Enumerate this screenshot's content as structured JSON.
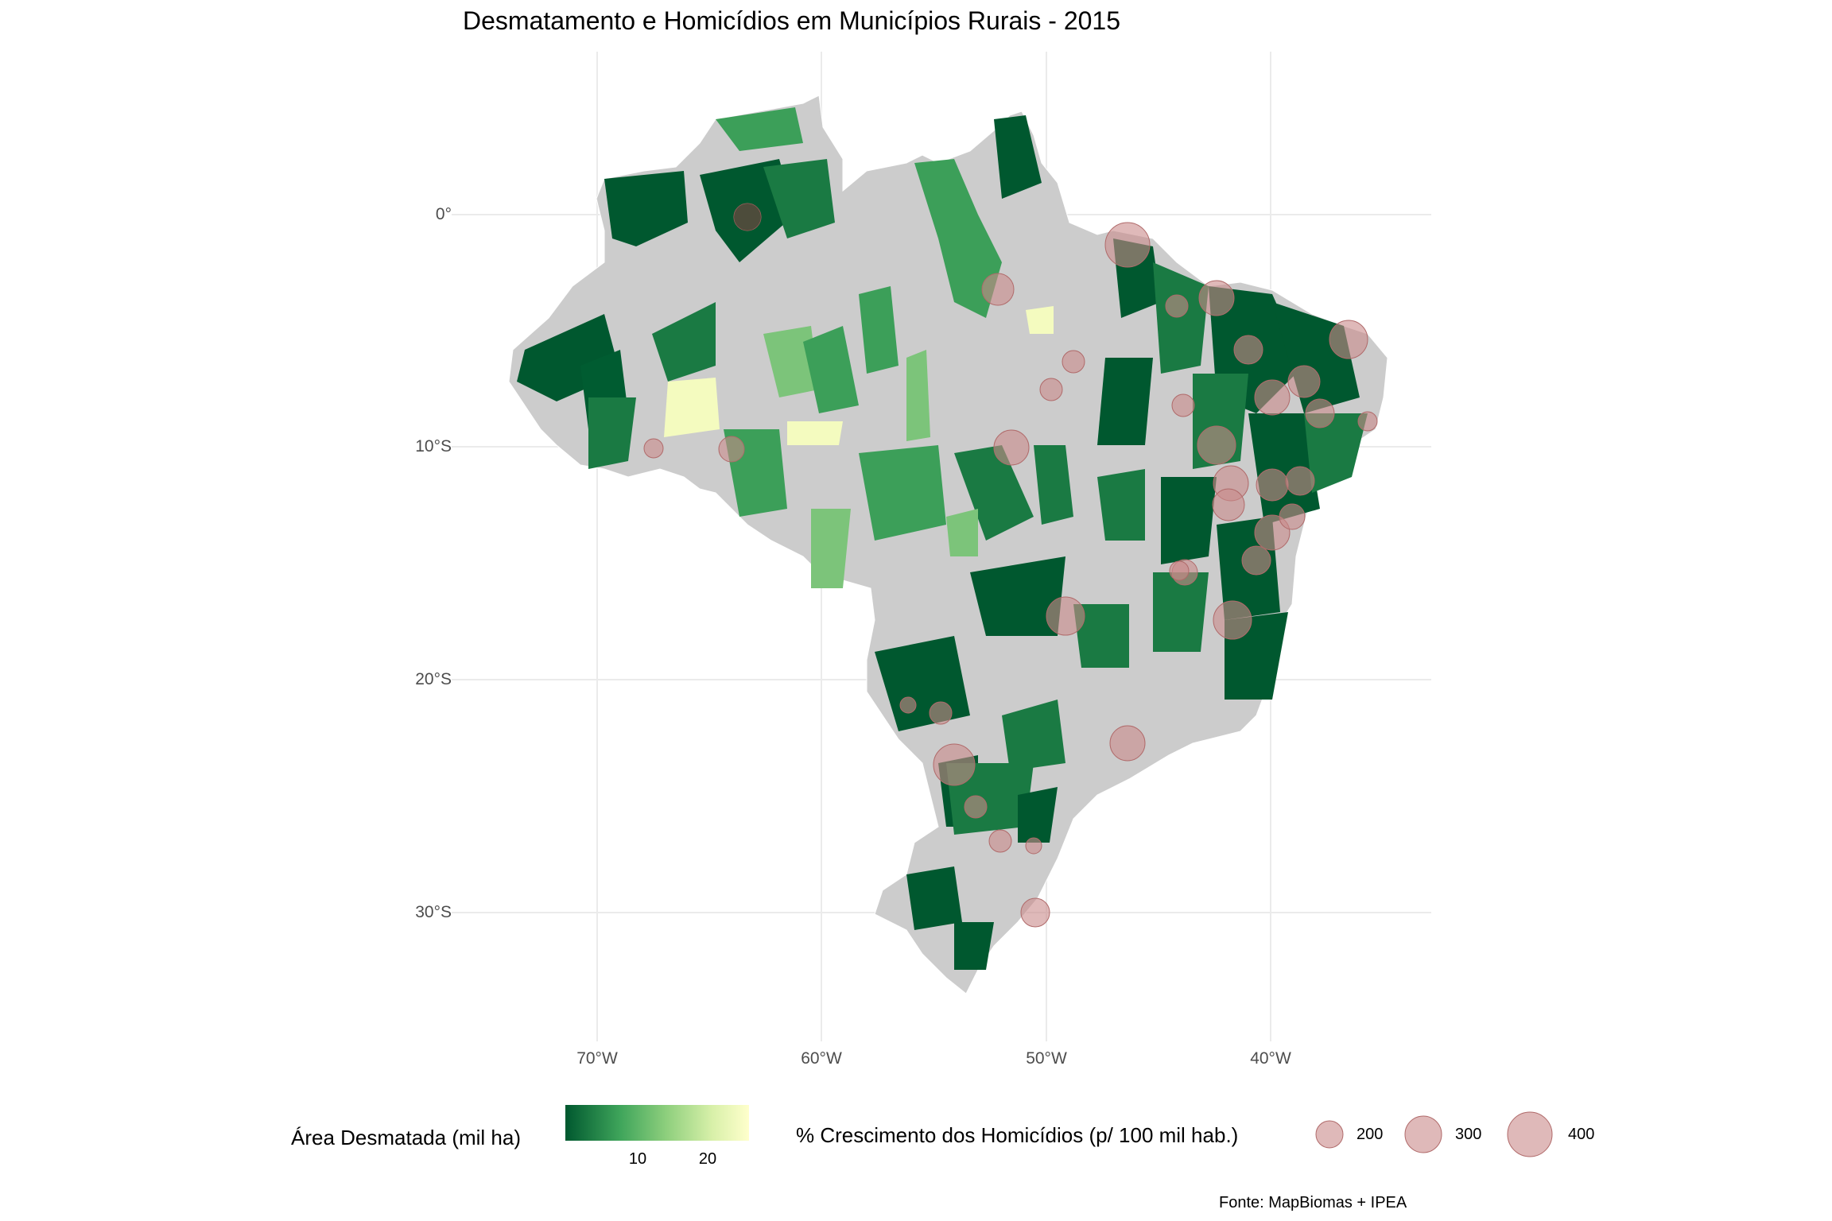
{
  "title": "Desmatamento e Homicídios em Municípios Rurais - 2015",
  "axes": {
    "y_ticks": [
      "0°",
      "10°S",
      "20°S",
      "30°S"
    ],
    "x_ticks": [
      "70°W",
      "60°W",
      "50°W",
      "40°W"
    ]
  },
  "legend_fill": {
    "title": "Área Desmatada (mil ha)",
    "ticks": [
      "10",
      "20"
    ],
    "colors": [
      "#00582f",
      "#3fa55b",
      "#8ecf7d",
      "#d8f0a9",
      "#ffffcc"
    ]
  },
  "legend_size": {
    "title": "% Crescimento dos Homicídios (p/ 100 mil hab.)",
    "items": [
      {
        "label": "200",
        "value": 200
      },
      {
        "label": "300",
        "value": 300
      },
      {
        "label": "400",
        "value": 400
      }
    ],
    "color": "#c98a8a"
  },
  "caption": "Fonte: MapBiomas + IPEA",
  "colors": {
    "land": "#cccccc",
    "dark_green": "#00582f",
    "mid_green": "#3c9f59",
    "light_green": "#7cc47a",
    "pale_yellow": "#f4fbbf",
    "bubble": "#c98a8a",
    "grid": "#ebebeb"
  }
}
